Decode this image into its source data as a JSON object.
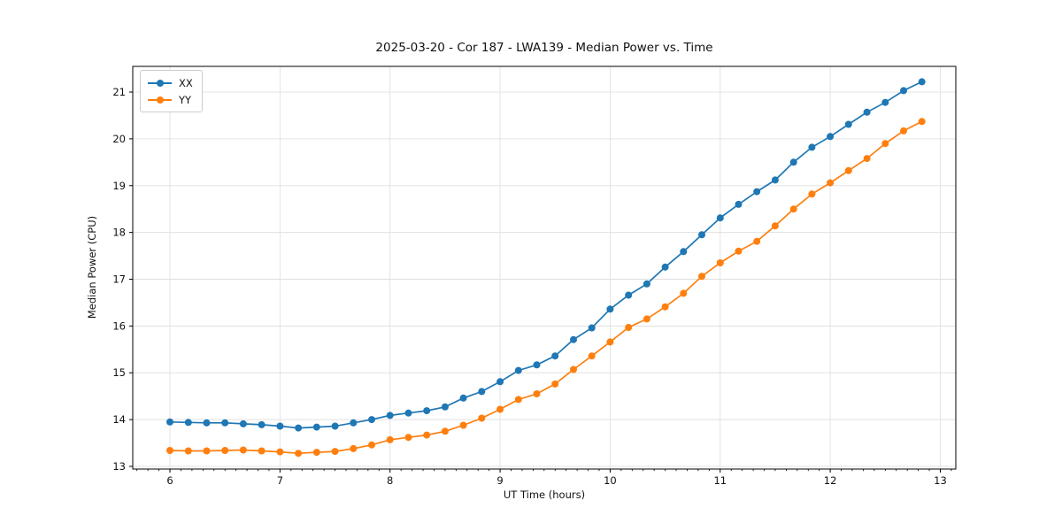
{
  "chart_data": {
    "type": "line",
    "title": "2025-03-20 - Cor 187 - LWA139 - Median Power vs. Time",
    "xlabel": "UT Time (hours)",
    "ylabel": "Median Power (CPU)",
    "xlim": [
      5.662,
      13.141
    ],
    "ylim": [
      12.943,
      21.549
    ],
    "xticks": [
      6,
      7,
      8,
      9,
      10,
      11,
      12,
      13
    ],
    "yticks": [
      13,
      14,
      15,
      16,
      17,
      18,
      19,
      20,
      21
    ],
    "minor_xtick_step": 0.1,
    "grid": true,
    "grid_color": "#e0e0e0",
    "legend_position": "upper left",
    "x": [
      6.0,
      6.1667,
      6.3333,
      6.5,
      6.6667,
      6.8333,
      7.0,
      7.1667,
      7.3333,
      7.5,
      7.6667,
      7.8333,
      8.0,
      8.1667,
      8.3333,
      8.5,
      8.6667,
      8.8333,
      9.0,
      9.1667,
      9.3333,
      9.5,
      9.6667,
      9.8333,
      10.0,
      10.1667,
      10.3333,
      10.5,
      10.6667,
      10.8333,
      11.0,
      11.1667,
      11.3333,
      11.5,
      11.6667,
      11.8333,
      12.0,
      12.1667,
      12.3333,
      12.5,
      12.6667,
      12.8333
    ],
    "series": [
      {
        "name": "XX",
        "color": "#1f77b4",
        "marker": "circle",
        "values": [
          13.95,
          13.94,
          13.93,
          13.93,
          13.91,
          13.89,
          13.86,
          13.82,
          13.84,
          13.86,
          13.93,
          14.0,
          14.09,
          14.14,
          14.19,
          14.27,
          14.46,
          14.6,
          14.81,
          15.05,
          15.17,
          15.36,
          15.71,
          15.96,
          16.36,
          16.66,
          16.9,
          17.26,
          17.59,
          17.95,
          18.31,
          18.6,
          18.87,
          19.12,
          19.5,
          19.82,
          20.05,
          20.31,
          20.57,
          20.78,
          21.03,
          21.22
        ]
      },
      {
        "name": "YY",
        "color": "#ff7f0e",
        "marker": "circle",
        "values": [
          13.34,
          13.33,
          13.33,
          13.34,
          13.35,
          13.33,
          13.31,
          13.28,
          13.3,
          13.32,
          13.38,
          13.46,
          13.57,
          13.62,
          13.67,
          13.75,
          13.88,
          14.03,
          14.22,
          14.43,
          14.55,
          14.76,
          15.07,
          15.36,
          15.66,
          15.97,
          16.15,
          16.41,
          16.7,
          17.06,
          17.35,
          17.6,
          17.81,
          18.14,
          18.5,
          18.82,
          19.06,
          19.32,
          19.58,
          19.9,
          20.17,
          20.37
        ]
      }
    ]
  }
}
